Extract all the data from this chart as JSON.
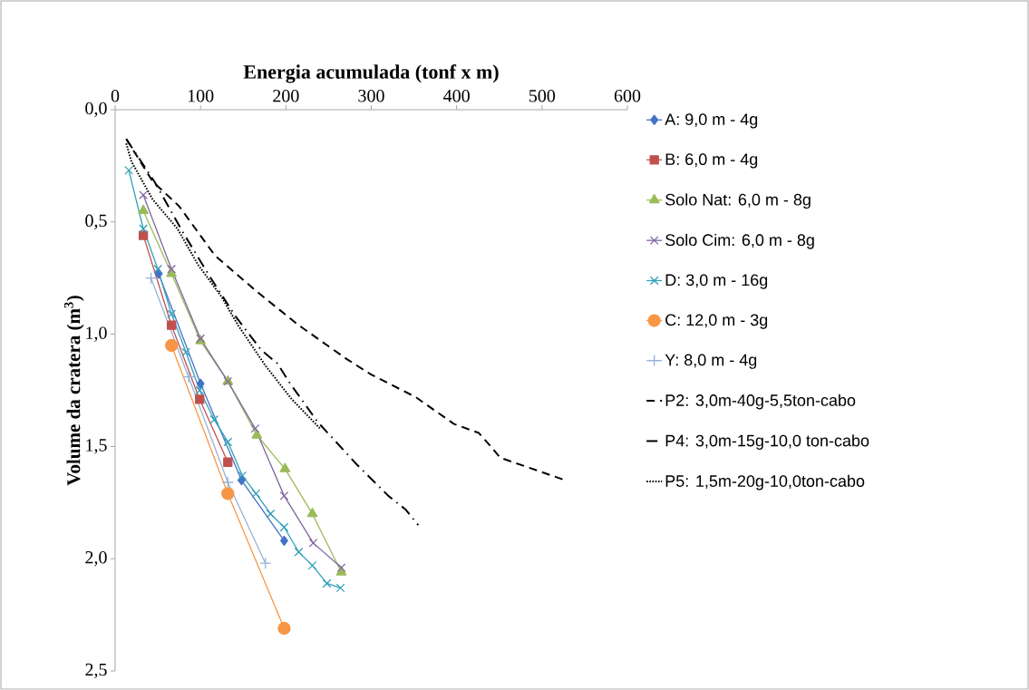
{
  "chart_data": {
    "type": "line",
    "title": "Energia acumulada (tonf x m)",
    "ylabel": "Volume da cratera (m$^{3}$)",
    "xlim": [
      0,
      600
    ],
    "xticks": [
      0,
      100,
      200,
      300,
      400,
      500,
      600
    ],
    "ylim": [
      2.5,
      0
    ],
    "yticks": [
      {
        "value": 0,
        "label": "0,0"
      },
      {
        "value": 0.5,
        "label": "0,5"
      },
      {
        "value": 1,
        "label": "1,0"
      },
      {
        "value": 1.5,
        "label": "1,5"
      },
      {
        "value": 2,
        "label": "2,0"
      },
      {
        "value": 2.5,
        "label": "2,5"
      }
    ],
    "legend": "right",
    "grid": false,
    "series": [
      {
        "name": "A: 9,0 m - 4g",
        "color": "#4472c4",
        "marker": "diamond",
        "line_style": "solid",
        "x": [
          51,
          100,
          148,
          198
        ],
        "values": [
          0.73,
          1.22,
          1.65,
          1.92
        ]
      },
      {
        "name": "B: 6,0 m - 4g",
        "color": "#c0504d",
        "marker": "square",
        "line_style": "solid",
        "x": [
          33,
          66,
          99,
          132
        ],
        "values": [
          0.56,
          0.96,
          1.29,
          1.57
        ]
      },
      {
        "name": "Solo Nat: 6,0 m - 8g",
        "color": "#9bbb59",
        "marker": "triangle",
        "line_style": "solid",
        "x": [
          33,
          66,
          100,
          132,
          166,
          199,
          231,
          265
        ],
        "values": [
          0.45,
          0.73,
          1.03,
          1.21,
          1.45,
          1.6,
          1.8,
          2.06
        ]
      },
      {
        "name": "Solo Cim: 6,0 m - 8g",
        "color": "#8064a2",
        "marker": "cross",
        "line_style": "solid",
        "x": [
          33,
          66,
          100,
          132,
          164,
          198,
          232,
          265
        ],
        "values": [
          0.38,
          0.71,
          1.02,
          1.21,
          1.42,
          1.72,
          1.93,
          2.04
        ]
      },
      {
        "name": "D: 3,0 m - 16g",
        "color": "#31a0b8",
        "marker": "cross",
        "line_style": "solid",
        "x": [
          16,
          33,
          50,
          66,
          83,
          99,
          116,
          132,
          149,
          165,
          182,
          198,
          215,
          231,
          248,
          264
        ],
        "values": [
          0.27,
          0.53,
          0.71,
          0.91,
          1.08,
          1.25,
          1.38,
          1.48,
          1.63,
          1.71,
          1.8,
          1.86,
          1.97,
          2.03,
          2.11,
          2.13
        ]
      },
      {
        "name": "C: 12,0 m - 3g",
        "color": "#f79646",
        "marker": "circle",
        "line_style": "solid",
        "x": [
          66,
          132,
          198
        ],
        "values": [
          1.05,
          1.71,
          2.31
        ]
      },
      {
        "name": "Y: 8,0 m - 4g",
        "color": "#95b3d7",
        "marker": "plus",
        "line_style": "solid",
        "x": [
          42,
          86,
          132,
          176
        ],
        "values": [
          0.75,
          1.19,
          1.66,
          2.02
        ]
      },
      {
        "name": "P2: 3,0m-40g-5,5ton-cabo",
        "color": "#000000",
        "marker": "none",
        "line_style": "dashed",
        "x": [
          13,
          44,
          75,
          117,
          166,
          215,
          271,
          300,
          352,
          397,
          426,
          440,
          451,
          527
        ],
        "values": [
          0.13,
          0.32,
          0.43,
          0.65,
          0.81,
          0.96,
          1.11,
          1.18,
          1.28,
          1.4,
          1.44,
          1.5,
          1.55,
          1.65
        ]
      },
      {
        "name": "P4: 3,0m-15g-10,0 ton-cabo",
        "color": "#000000",
        "marker": "none",
        "line_style": "dashdot",
        "x": [
          13,
          46,
          80,
          112,
          141,
          171,
          190,
          205,
          237,
          283,
          320,
          340,
          355
        ],
        "values": [
          0.13,
          0.32,
          0.55,
          0.75,
          0.92,
          1.07,
          1.13,
          1.22,
          1.39,
          1.58,
          1.72,
          1.78,
          1.85
        ]
      },
      {
        "name": "P5: 1,5m-20g-10,0ton-cabo",
        "color": "#000000",
        "marker": "none",
        "line_style": "dotted",
        "x": [
          13,
          19,
          44,
          73,
          97,
          124,
          144,
          176,
          207,
          240
        ],
        "values": [
          0.15,
          0.23,
          0.4,
          0.53,
          0.69,
          0.83,
          0.96,
          1.14,
          1.29,
          1.42
        ]
      }
    ]
  }
}
